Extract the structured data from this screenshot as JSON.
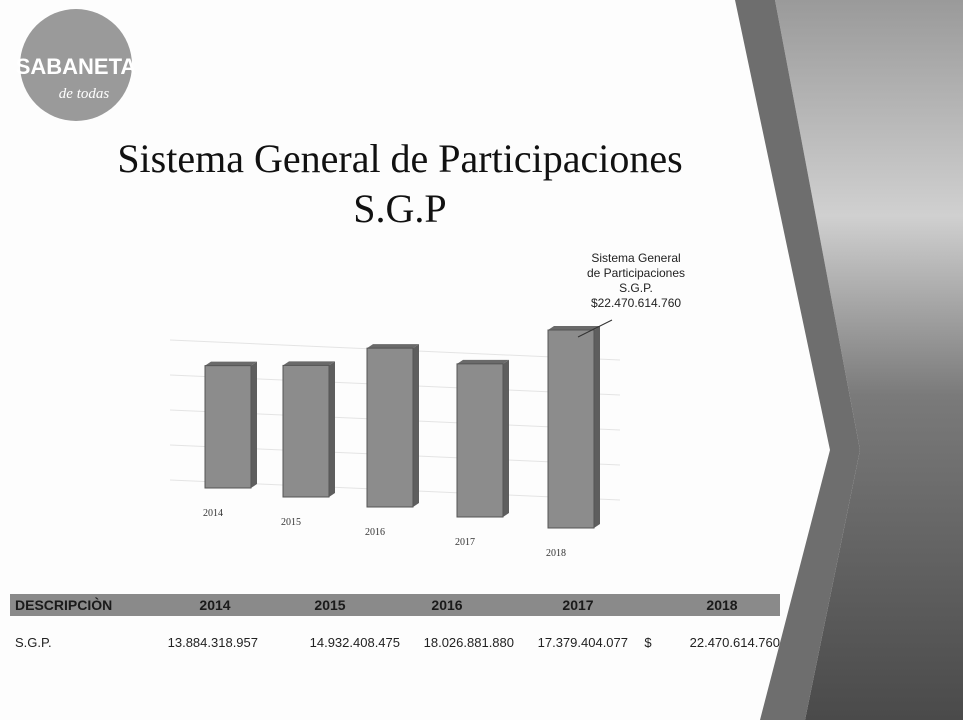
{
  "logo": {
    "name": "SABANETA",
    "tagline": "de todas"
  },
  "chart_data": {
    "type": "bar",
    "title": [
      "Sistema General de Participaciones",
      "S.G.P"
    ],
    "categories": [
      "2014",
      "2015",
      "2016",
      "2017",
      "2018"
    ],
    "values": [
      13884318957,
      14932408475,
      18026881880,
      17379404077,
      22470614760
    ],
    "color": "#8c8c8c",
    "annotation": [
      "Sistema General",
      "de Participaciones",
      "S.G.P.",
      "$22.470.614.760"
    ]
  },
  "table": {
    "header": [
      "DESCRIPCIÒN",
      "2014",
      "2015",
      "2016",
      "2017",
      "2018"
    ],
    "rows": [
      [
        "S.G.P.",
        "13.884.318.957",
        "14.932.408.475",
        "18.026.881.880",
        "17.379.404.077",
        "$",
        "22.470.614.760"
      ]
    ]
  }
}
